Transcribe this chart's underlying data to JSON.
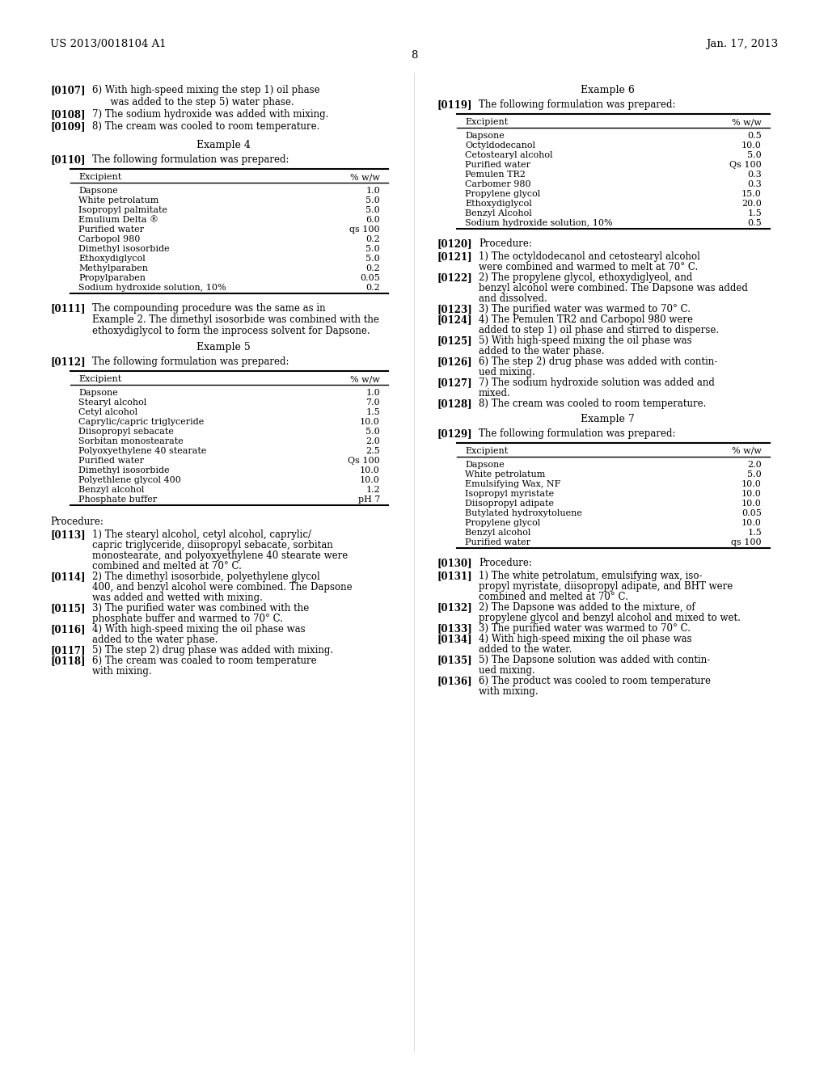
{
  "bg_color": "#ffffff",
  "header_left": "US 2013/0018104 A1",
  "header_right": "Jan. 17, 2013",
  "page_num": "8",
  "left_intro": [
    {
      "num": "[0107]",
      "indent": true,
      "text": "6) With high-speed mixing the step 1) oil phase\n         was added to the step 5) water phase."
    },
    {
      "num": "[0108]",
      "indent": true,
      "text": "7) The sodium hydroxide was added with mixing."
    },
    {
      "num": "[0109]",
      "indent": true,
      "text": "8) The cream was cooled to room temperature."
    }
  ],
  "example4_title": "Example 4",
  "example4_intro": "The following formulation was prepared:",
  "example4_intro_num": "[0110]",
  "table4_rows": [
    [
      "Dapsone",
      "1.0"
    ],
    [
      "White petrolatum",
      "5.0"
    ],
    [
      "Isopropyl palmitate",
      "5.0"
    ],
    [
      "Emulium Delta ®",
      "6.0"
    ],
    [
      "Purified water",
      "qs 100"
    ],
    [
      "Carbopol 980",
      "0.2"
    ],
    [
      "Dimethyl isosorbide",
      "5.0"
    ],
    [
      "Ethoxydiglycol",
      "5.0"
    ],
    [
      "Methylparaben",
      "0.2"
    ],
    [
      "Propylparaben",
      "0.05"
    ],
    [
      "Sodium hydroxide solution, 10%",
      "0.2"
    ]
  ],
  "para0111": "[0111]   The compounding procedure was the same as in\n         Example 2. The dimethyl isosorbide was combined with the\n         ethoxydiglycol to form the inprocess solvent for Dapsone.",
  "example5_title": "Example 5",
  "example5_intro": "The following formulation was prepared:",
  "example5_intro_num": "[0112]",
  "table5_rows": [
    [
      "Dapsone",
      "1.0"
    ],
    [
      "Stearyl alcohol",
      "7.0"
    ],
    [
      "Cetyl alcohol",
      "1.5"
    ],
    [
      "Caprylic/capric triglyceride",
      "10.0"
    ],
    [
      "Diisopropyl sebacate",
      "5.0"
    ],
    [
      "Sorbitan monostearate",
      "2.0"
    ],
    [
      "Polyoxyethylene 40 stearate",
      "2.5"
    ],
    [
      "Purified water",
      "Qs 100"
    ],
    [
      "Dimethyl isosorbide",
      "10.0"
    ],
    [
      "Polyethlene glycol 400",
      "10.0"
    ],
    [
      "Benzyl alcohol",
      "1.2"
    ],
    [
      "Phosphate buffer",
      "pH 7"
    ]
  ],
  "procedure_label": "Procedure:",
  "left_procedure": [
    {
      "num": "[0113]",
      "text": "1) The stearyl alcohol, cetyl alcohol, caprylic/\n            capric triglyceride, diisopropyl sebacate, sorbitan\n            monostearate, and polyoxyethylene 40 stearate were\n            combined and melted at 70° C."
    },
    {
      "num": "[0114]",
      "text": "2) The dimethyl isosorbide, polyethylene glycol\n            400, and benzyl alcohol were combined. The Dapsone\n            was added and wetted with mixing."
    },
    {
      "num": "[0115]",
      "text": "3) The purified water was combined with the\n            phosphate buffer and warmed to 70° C."
    },
    {
      "num": "[0116]",
      "text": "4) With high-speed mixing the oil phase was\n            added to the water phase."
    },
    {
      "num": "[0117]",
      "text": "5) The step 2) drug phase was added with mixing."
    },
    {
      "num": "[0118]",
      "text": "6) The cream was coaled to room temperature\n            with mixing."
    }
  ],
  "example6_title": "Example 6",
  "example6_intro": "The following formulation was prepared:",
  "example6_intro_num": "[0119]",
  "table6_rows": [
    [
      "Dapsone",
      "0.5"
    ],
    [
      "Octyldodecanol",
      "10.0"
    ],
    [
      "Cetostearyl alcohol",
      "5.0"
    ],
    [
      "Purified water",
      "Qs 100"
    ],
    [
      "Pemulen TR2",
      "0.3"
    ],
    [
      "Carbomer 980",
      "0.3"
    ],
    [
      "Propylene glycol",
      "15.0"
    ],
    [
      "Ethoxydiglycol",
      "20.0"
    ],
    [
      "Benzyl Alcohol",
      "1.5"
    ],
    [
      "Sodium hydroxide solution, 10%",
      "0.5"
    ]
  ],
  "right_procedure_label": "Procedure:",
  "right_procedure_num": "[0120]",
  "right_procedure": [
    {
      "num": "[0121]",
      "text": "1) The octyldodecanol and cetostearyl alcohol\n            were combined and warmed to melt at 70° C."
    },
    {
      "num": "[0122]",
      "text": "2) The propylene glycol, ethoxydiglyeol, and\n            benzyl alcohol were combined. The Dapsone was added\n            and dissolved."
    },
    {
      "num": "[0123]",
      "text": "3) The purified water was warmed to 70° C."
    },
    {
      "num": "[0124]",
      "text": "4) The Pemulen TR2 and Carbopol 980 were\n            added to step 1) oil phase and stirred to disperse."
    },
    {
      "num": "[0125]",
      "text": "5) With high-speed mixing the oil phase was\n            added to the water phase."
    },
    {
      "num": "[0126]",
      "text": "6) The step 2) drug phase was added with contin-\n            ued mixing."
    },
    {
      "num": "[0127]",
      "text": "7) The sodium hydroxide solution was added and\n            mixed."
    },
    {
      "num": "[0128]",
      "text": "8) The cream was cooled to room temperature."
    }
  ],
  "example7_title": "Example 7",
  "example7_intro": "The following formulation was prepared:",
  "example7_intro_num": "[0129]",
  "table7_rows": [
    [
      "Dapsone",
      "2.0"
    ],
    [
      "White petrolatum",
      "5.0"
    ],
    [
      "Emulsifying Wax, NF",
      "10.0"
    ],
    [
      "Isopropyl myristate",
      "10.0"
    ],
    [
      "Diisopropyl adipate",
      "10.0"
    ],
    [
      "Butylated hydroxytoluene",
      "0.05"
    ],
    [
      "Propylene glycol",
      "10.0"
    ],
    [
      "Benzyl alcohol",
      "1.5"
    ],
    [
      "Purified water",
      "qs 100"
    ]
  ],
  "right_procedure2_label": "Procedure:",
  "right_procedure2_num": "[0130]",
  "right_procedure2": [
    {
      "num": "[0131]",
      "text": "1) The white petrolatum, emulsifying wax, iso-\n            propyl myristate, diisopropyl adipate, and BHT were\n            combined and melted at 70° C."
    },
    {
      "num": "[0132]",
      "text": "2) The Dapsone was added to the mixture, of\n            propylene glycol and benzyl alcohol and mixed to wet."
    },
    {
      "num": "[0133]",
      "text": "3) The purified water was warmed to 70° C."
    },
    {
      "num": "[0134]",
      "text": "4) With high-speed mixing the oil phase was\n            added to the water."
    },
    {
      "num": "[0135]",
      "text": "5) The Dapsone solution was added with contin-\n            ued mixing."
    },
    {
      "num": "[0136]",
      "text": "6) The product was cooled to room temperature\n            with mixing."
    }
  ]
}
